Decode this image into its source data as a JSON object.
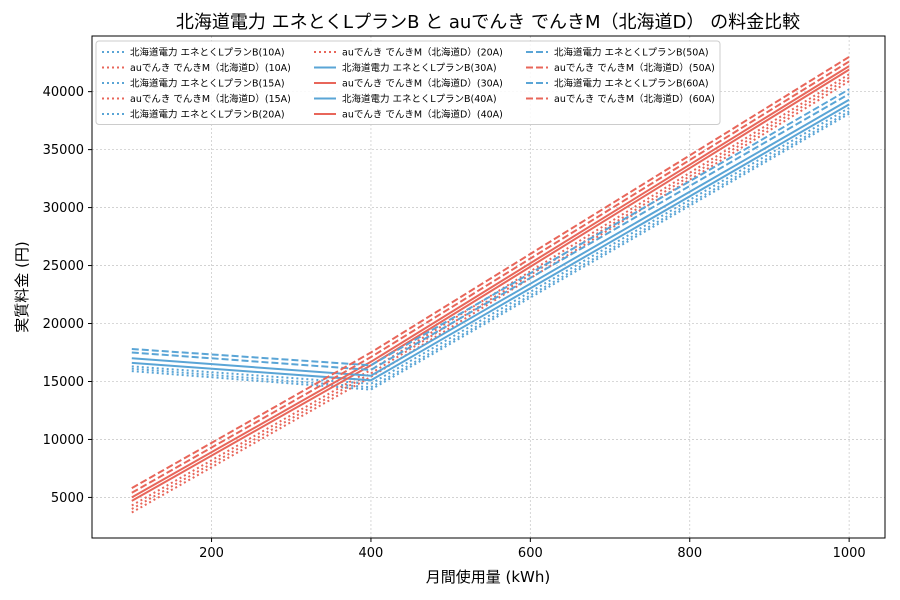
{
  "chart_data": {
    "type": "line",
    "title": "北海道電力 エネとくLプランB と auでんき でんきM（北海道D） の料金比較",
    "xlabel": "月間使用量 (kWh)",
    "ylabel": "実質料金 (円)",
    "xlim": [
      50,
      1045
    ],
    "ylim": [
      1500,
      44800
    ],
    "xticks": [
      200,
      400,
      600,
      800,
      1000
    ],
    "yticks": [
      5000,
      10000,
      15000,
      20000,
      25000,
      30000,
      35000,
      40000
    ],
    "grid": true,
    "legend_position": "top-left",
    "colors": {
      "hokuden": "#5aa5d6",
      "au": "#e8665a"
    },
    "series": [
      {
        "name": "北海道電力 エネとくLプランB(10A)",
        "provider": "hokuden",
        "style": "dotted",
        "x": [
          100,
          400,
          1000
        ],
        "y": [
          15900,
          14300,
          38100
        ]
      },
      {
        "name": "auでんき でんきM（北海道D）(10A)",
        "provider": "au",
        "style": "dotted",
        "x": [
          100,
          400,
          1000
        ],
        "y": [
          3700,
          15400,
          40900
        ]
      },
      {
        "name": "北海道電力 エネとくLプランB(15A)",
        "provider": "hokuden",
        "style": "dotted",
        "x": [
          100,
          400,
          1000
        ],
        "y": [
          16100,
          14500,
          38300
        ]
      },
      {
        "name": "auでんき でんきM（北海道D）(15A)",
        "provider": "au",
        "style": "dotted",
        "x": [
          100,
          400,
          1000
        ],
        "y": [
          4000,
          15700,
          41200
        ]
      },
      {
        "name": "北海道電力 エネとくLプランB(20A)",
        "provider": "hokuden",
        "style": "dotted",
        "x": [
          100,
          400,
          1000
        ],
        "y": [
          16300,
          14800,
          38600
        ]
      },
      {
        "name": "auでんき でんきM（北海道D）(20A)",
        "provider": "au",
        "style": "dotted",
        "x": [
          100,
          400,
          1000
        ],
        "y": [
          4300,
          16000,
          41500
        ]
      },
      {
        "name": "北海道電力 エネとくLプランB(30A)",
        "provider": "hokuden",
        "style": "solid",
        "x": [
          100,
          400,
          1000
        ],
        "y": [
          16600,
          15100,
          38900
        ]
      },
      {
        "name": "auでんき でんきM（北海道D）(30A)",
        "provider": "au",
        "style": "solid",
        "x": [
          100,
          400,
          1000
        ],
        "y": [
          4700,
          16400,
          41900
        ]
      },
      {
        "name": "北海道電力 エネとくLプランB(40A)",
        "provider": "hokuden",
        "style": "solid",
        "x": [
          100,
          400,
          1000
        ],
        "y": [
          17000,
          15500,
          39300
        ]
      },
      {
        "name": "auでんき でんきM（北海道D）(40A)",
        "provider": "au",
        "style": "solid",
        "x": [
          100,
          400,
          1000
        ],
        "y": [
          5000,
          16700,
          42200
        ]
      },
      {
        "name": "北海道電力 エネとくLプランB(50A)",
        "provider": "hokuden",
        "style": "dashed",
        "x": [
          100,
          400,
          1000
        ],
        "y": [
          17500,
          16000,
          39800
        ]
      },
      {
        "name": "auでんき でんきM（北海道D）(50A)",
        "provider": "au",
        "style": "dashed",
        "x": [
          100,
          400,
          1000
        ],
        "y": [
          5400,
          17100,
          42600
        ]
      },
      {
        "name": "北海道電力 エネとくLプランB(60A)",
        "provider": "hokuden",
        "style": "dashed",
        "x": [
          100,
          400,
          1000
        ],
        "y": [
          17800,
          16400,
          40200
        ]
      },
      {
        "name": "auでんき でんきM（北海道D）(60A)",
        "provider": "au",
        "style": "dashed",
        "x": [
          100,
          400,
          1000
        ],
        "y": [
          5800,
          17500,
          43000
        ]
      }
    ]
  }
}
